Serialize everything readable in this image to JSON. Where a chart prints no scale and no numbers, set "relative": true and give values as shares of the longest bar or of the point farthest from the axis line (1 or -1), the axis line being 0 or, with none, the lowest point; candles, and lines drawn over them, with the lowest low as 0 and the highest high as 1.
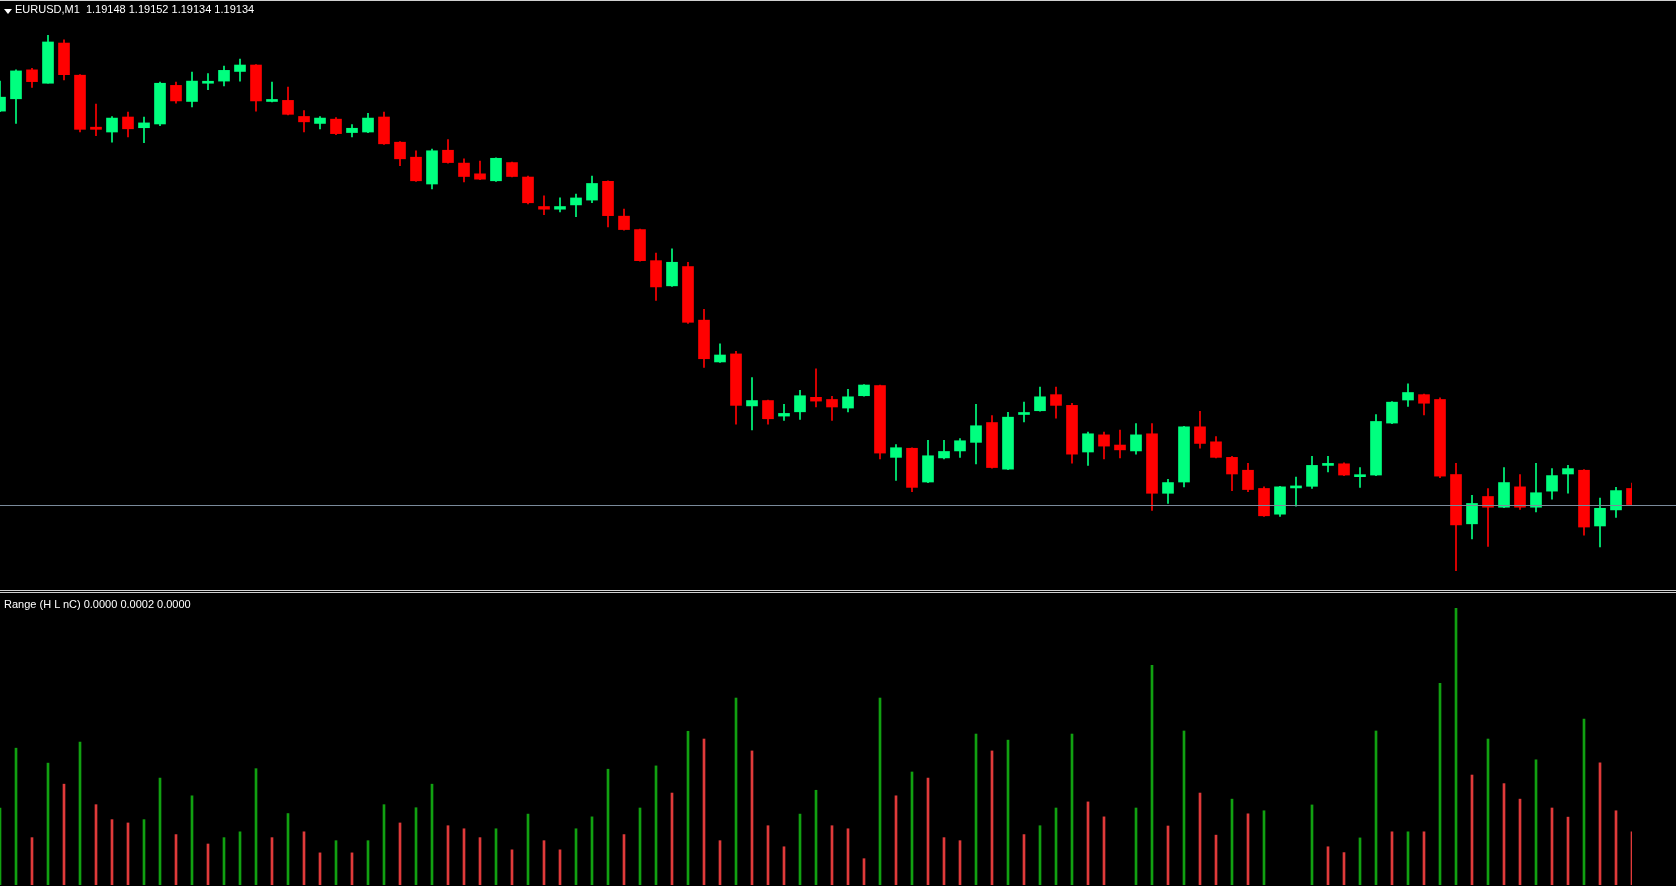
{
  "chart_data": [
    {
      "type": "candlestick",
      "title": "EURUSD,M1  1.19148 1.19152 1.19134 1.19134",
      "relative": true,
      "categories": [
        null,
        null,
        null,
        null,
        null,
        null,
        null,
        null,
        null,
        null,
        null,
        null,
        null,
        null,
        null,
        null,
        null,
        null,
        null,
        null,
        null,
        null,
        null,
        null,
        null,
        null,
        null,
        null,
        null,
        null,
        null,
        null,
        null,
        null,
        null,
        null,
        null,
        null,
        null,
        null,
        null,
        null,
        null,
        null,
        null,
        null,
        null,
        null,
        null,
        null,
        null,
        null,
        null,
        null,
        null,
        null,
        null,
        null,
        null,
        null,
        null,
        null,
        null,
        null,
        null,
        null,
        null,
        null,
        null,
        null,
        null,
        null,
        null,
        null,
        null,
        null,
        null,
        null,
        null,
        null,
        null,
        null,
        null,
        null,
        null,
        null,
        null,
        null,
        null,
        null,
        null,
        null,
        null,
        null,
        null,
        null,
        null,
        null,
        null,
        null,
        null,
        null,
        null
      ],
      "ohlc": [
        [
          0.858,
          0.914,
          0.857,
          0.884
        ],
        [
          0.881,
          0.935,
          0.835,
          0.933
        ],
        [
          0.935,
          0.938,
          0.902,
          0.913
        ],
        [
          0.91,
          1,
          0.91,
          0.987
        ],
        [
          0.985,
          0.991,
          0.916,
          0.926
        ],
        [
          0.925,
          0.926,
          0.819,
          0.824
        ],
        [
          0.828,
          0.871,
          0.812,
          0.824
        ],
        [
          0.819,
          0.848,
          0.8,
          0.845
        ],
        [
          0.847,
          0.856,
          0.81,
          0.825
        ],
        [
          0.827,
          0.847,
          0.799,
          0.836
        ],
        [
          0.834,
          0.912,
          0.831,
          0.91
        ],
        [
          0.906,
          0.912,
          0.873,
          0.877
        ],
        [
          0.876,
          0.931,
          0.866,
          0.914
        ],
        [
          0.91,
          0.928,
          0.898,
          0.912
        ],
        [
          0.914,
          0.942,
          0.905,
          0.934
        ],
        [
          0.932,
          0.955,
          0.914,
          0.944
        ],
        [
          0.944,
          0.945,
          0.858,
          0.877
        ],
        [
          0.876,
          0.912,
          0.875,
          0.878
        ],
        [
          0.878,
          0.903,
          0.851,
          0.852
        ],
        [
          0.848,
          0.859,
          0.819,
          0.838
        ],
        [
          0.835,
          0.848,
          0.825,
          0.845
        ],
        [
          0.843,
          0.846,
          0.814,
          0.816
        ],
        [
          0.818,
          0.833,
          0.81,
          0.826
        ],
        [
          0.819,
          0.854,
          0.818,
          0.845
        ],
        [
          0.847,
          0.856,
          0.796,
          0.797
        ],
        [
          0.8,
          0.801,
          0.756,
          0.769
        ],
        [
          0.772,
          0.784,
          0.727,
          0.728
        ],
        [
          0.722,
          0.787,
          0.713,
          0.784
        ],
        [
          0.785,
          0.805,
          0.761,
          0.762
        ],
        [
          0.761,
          0.769,
          0.726,
          0.736
        ],
        [
          0.741,
          0.765,
          0.73,
          0.731
        ],
        [
          0.728,
          0.771,
          0.727,
          0.77
        ],
        [
          0.762,
          0.763,
          0.735,
          0.736
        ],
        [
          0.735,
          0.737,
          0.685,
          0.687
        ],
        [
          0.68,
          0.7,
          0.665,
          0.675
        ],
        [
          0.675,
          0.696,
          0.67,
          0.68
        ],
        [
          0.683,
          0.703,
          0.661,
          0.696
        ],
        [
          0.692,
          0.737,
          0.687,
          0.723
        ],
        [
          0.727,
          0.728,
          0.642,
          0.663
        ],
        [
          0.662,
          0.675,
          0.636,
          0.637
        ],
        [
          0.637,
          0.638,
          0.578,
          0.579
        ],
        [
          0.579,
          0.593,
          0.505,
          0.53
        ],
        [
          0.532,
          0.601,
          0.531,
          0.576
        ],
        [
          0.568,
          0.576,
          0.462,
          0.464
        ],
        [
          0.468,
          0.488,
          0.38,
          0.396
        ],
        [
          0.39,
          0.424,
          0.389,
          0.403
        ],
        [
          0.405,
          0.41,
          0.274,
          0.309
        ],
        [
          0.308,
          0.361,
          0.263,
          0.318
        ],
        [
          0.318,
          0.319,
          0.274,
          0.284
        ],
        [
          0.289,
          0.311,
          0.281,
          0.294
        ],
        [
          0.297,
          0.337,
          0.283,
          0.327
        ],
        [
          0.324,
          0.377,
          0.306,
          0.317
        ],
        [
          0.32,
          0.326,
          0.281,
          0.306
        ],
        [
          0.304,
          0.339,
          0.297,
          0.325
        ],
        [
          0.327,
          0.348,
          0.326,
          0.347
        ],
        [
          0.346,
          0.347,
          0.209,
          0.22
        ],
        [
          0.212,
          0.236,
          0.169,
          0.23
        ],
        [
          0.229,
          0.23,
          0.148,
          0.156
        ],
        [
          0.166,
          0.244,
          0.165,
          0.215
        ],
        [
          0.211,
          0.244,
          0.209,
          0.223
        ],
        [
          0.224,
          0.247,
          0.212,
          0.243
        ],
        [
          0.24,
          0.311,
          0.2,
          0.271
        ],
        [
          0.277,
          0.29,
          0.192,
          0.193
        ],
        [
          0.19,
          0.296,
          0.189,
          0.287
        ],
        [
          0.292,
          0.315,
          0.278,
          0.295
        ],
        [
          0.299,
          0.343,
          0.298,
          0.325
        ],
        [
          0.329,
          0.343,
          0.285,
          0.309
        ],
        [
          0.309,
          0.313,
          0.201,
          0.218
        ],
        [
          0.222,
          0.259,
          0.197,
          0.256
        ],
        [
          0.254,
          0.259,
          0.209,
          0.233
        ],
        [
          0.235,
          0.263,
          0.211,
          0.226
        ],
        [
          0.224,
          0.275,
          0.218,
          0.254
        ],
        [
          0.256,
          0.275,
          0.113,
          0.145
        ],
        [
          0.145,
          0.171,
          0.126,
          0.165
        ],
        [
          0.166,
          0.27,
          0.157,
          0.269
        ],
        [
          0.269,
          0.298,
          0.229,
          0.238
        ],
        [
          0.241,
          0.251,
          0.211,
          0.212
        ],
        [
          0.212,
          0.214,
          0.15,
          0.181
        ],
        [
          0.188,
          0.201,
          0.148,
          0.152
        ],
        [
          0.154,
          0.157,
          0.102,
          0.103
        ],
        [
          0.106,
          0.158,
          0.102,
          0.157
        ],
        [
          0.155,
          0.175,
          0.121,
          0.157
        ],
        [
          0.158,
          0.214,
          0.154,
          0.197
        ],
        [
          0.197,
          0.214,
          0.185,
          0.2
        ],
        [
          0.2,
          0.202,
          0.178,
          0.179
        ],
        [
          0.176,
          0.193,
          0.156,
          0.178
        ],
        [
          0.179,
          0.292,
          0.178,
          0.279
        ],
        [
          0.276,
          0.316,
          0.275,
          0.315
        ],
        [
          0.319,
          0.349,
          0.307,
          0.333
        ],
        [
          0.329,
          0.33,
          0.291,
          0.313
        ],
        [
          0.32,
          0.323,
          0.174,
          0.177
        ],
        [
          0.18,
          0.201,
          0,
          0.086
        ],
        [
          0.088,
          0.141,
          0.06,
          0.126
        ],
        [
          0.139,
          0.154,
          0.046,
          0.119
        ],
        [
          0.119,
          0.193,
          0.118,
          0.165
        ],
        [
          0.157,
          0.18,
          0.115,
          0.119
        ],
        [
          0.119,
          0.201,
          0.11,
          0.146
        ],
        [
          0.149,
          0.191,
          0.134,
          0.178
        ],
        [
          0.181,
          0.197,
          0.145,
          0.191
        ],
        [
          0.188,
          0.189,
          0.067,
          0.082
        ],
        [
          0.084,
          0.136,
          0.045,
          0.117
        ],
        [
          0.114,
          0.156,
          0.1,
          0.15
        ],
        [
          0.154,
          0.164,
          0.123,
          0.124
        ]
      ],
      "colors": [
        "#00ff7f",
        "#00ff7f",
        "#ff0000",
        "#00ff7f",
        "#ff0000",
        "#ff0000",
        "#ff0000",
        "#00ff7f",
        "#ff0000",
        "#00ff7f",
        "#00ff7f",
        "#ff0000",
        "#00ff7f",
        "#00ff7f",
        "#00ff7f",
        "#00ff7f",
        "#ff0000",
        "#00ff7f",
        "#ff0000",
        "#ff0000",
        "#00ff7f",
        "#ff0000",
        "#00ff7f",
        "#00ff7f",
        "#ff0000",
        "#ff0000",
        "#ff0000",
        "#00ff7f",
        "#ff0000",
        "#ff0000",
        "#ff0000",
        "#00ff7f",
        "#ff0000",
        "#ff0000",
        "#ff0000",
        "#00ff7f",
        "#00ff7f",
        "#00ff7f",
        "#ff0000",
        "#ff0000",
        "#ff0000",
        "#ff0000",
        "#00ff7f",
        "#ff0000",
        "#ff0000",
        "#00ff7f",
        "#ff0000",
        "#00ff7f",
        "#ff0000",
        "#00ff7f",
        "#00ff7f",
        "#ff0000",
        "#ff0000",
        "#00ff7f",
        "#00ff7f",
        "#ff0000",
        "#00ff7f",
        "#ff0000",
        "#00ff7f",
        "#00ff7f",
        "#00ff7f",
        "#00ff7f",
        "#ff0000",
        "#00ff7f",
        "#00ff7f",
        "#00ff7f",
        "#ff0000",
        "#ff0000",
        "#00ff7f",
        "#ff0000",
        "#ff0000",
        "#00ff7f",
        "#ff0000",
        "#00ff7f",
        "#00ff7f",
        "#ff0000",
        "#ff0000",
        "#ff0000",
        "#ff0000",
        "#ff0000",
        "#00ff7f",
        "#00ff7f",
        "#00ff7f",
        "#00ff7f",
        "#ff0000",
        "#00ff7f",
        "#00ff7f",
        "#00ff7f",
        "#00ff7f",
        "#ff0000",
        "#ff0000",
        "#ff0000",
        "#00ff7f",
        "#ff0000",
        "#00ff7f",
        "#ff0000",
        "#00ff7f",
        "#00ff7f",
        "#00ff7f",
        "#ff0000",
        "#00ff7f",
        "#00ff7f",
        "#ff0000"
      ],
      "ref_lines": [
        {
          "axis": "y",
          "value": 0.124,
          "color": "#7a8a9a"
        }
      ]
    },
    {
      "type": "bar",
      "title": "Range (H L nC) 0.0000 0.0002 0.0000",
      "relative": true,
      "categories": [
        null,
        null,
        null,
        null,
        null,
        null,
        null,
        null,
        null,
        null,
        null,
        null,
        null,
        null,
        null,
        null,
        null,
        null,
        null,
        null,
        null,
        null,
        null,
        null,
        null,
        null,
        null,
        null,
        null,
        null,
        null,
        null,
        null,
        null,
        null,
        null,
        null,
        null,
        null,
        null,
        null,
        null,
        null,
        null,
        null,
        null,
        null,
        null,
        null,
        null,
        null,
        null,
        null,
        null,
        null,
        null,
        null,
        null,
        null,
        null,
        null,
        null,
        null,
        null,
        null,
        null,
        null,
        null,
        null,
        null,
        null,
        null,
        null,
        null,
        null,
        null,
        null,
        null,
        null,
        null,
        null,
        null,
        null,
        null,
        null,
        null,
        null,
        null,
        null,
        null,
        null,
        null,
        null,
        null,
        null,
        null,
        null,
        null,
        null,
        null,
        null,
        null,
        null
      ],
      "values": [
        0.278,
        0.494,
        0.171,
        0.44,
        0.364,
        0.516,
        0.29,
        0.236,
        0.224,
        0.236,
        0.386,
        0.182,
        0.322,
        0.148,
        0.171,
        0.192,
        0.42,
        0.171,
        0.258,
        0.192,
        0.116,
        0.16,
        0.116,
        0.16,
        0.29,
        0.224,
        0.279,
        0.364,
        0.214,
        0.203,
        0.171,
        0.203,
        0.127,
        0.256,
        0.16,
        0.127,
        0.203,
        0.246,
        0.418,
        0.182,
        0.278,
        0.43,
        0.332,
        0.555,
        0.527,
        0.16,
        0.675,
        0.484,
        0.214,
        0.138,
        0.256,
        0.342,
        0.214,
        0.203,
        0.095,
        0.675,
        0.322,
        0.408,
        0.386,
        0.171,
        0.16,
        0.545,
        0.484,
        0.523,
        0.182,
        0.214,
        0.278,
        0.545,
        0.3,
        0.246,
        null,
        0.278,
        0.793,
        0.213,
        0.556,
        0.332,
        0.18,
        0.31,
        0.257,
        0.268,
        null,
        null,
        0.289,
        0.138,
        0.117,
        0.17,
        0.556,
        0.192,
        0.192,
        0.192,
        0.728,
        1,
        0.397,
        0.527,
        0.366,
        0.31,
        0.452,
        0.278,
        0.245,
        0.599,
        0.441,
        0.268,
        0.192
      ],
      "colors": [
        "#11a011",
        "#11a011",
        "#e03a3a",
        "#11a011",
        "#e03a3a",
        "#11a011",
        "#e03a3a",
        "#e03a3a",
        "#e03a3a",
        "#11a011",
        "#11a011",
        "#e03a3a",
        "#11a011",
        "#e03a3a",
        "#11a011",
        "#11a011",
        "#11a011",
        "#e03a3a",
        "#11a011",
        "#e03a3a",
        "#e03a3a",
        "#11a011",
        "#e03a3a",
        "#11a011",
        "#11a011",
        "#e03a3a",
        "#11a011",
        "#11a011",
        "#e03a3a",
        "#e03a3a",
        "#e03a3a",
        "#11a011",
        "#e03a3a",
        "#11a011",
        "#e03a3a",
        "#e03a3a",
        "#11a011",
        "#11a011",
        "#11a011",
        "#e03a3a",
        "#11a011",
        "#11a011",
        "#e03a3a",
        "#11a011",
        "#e03a3a",
        "#e03a3a",
        "#11a011",
        "#e03a3a",
        "#e03a3a",
        "#e03a3a",
        "#11a011",
        "#11a011",
        "#e03a3a",
        "#e03a3a",
        "#e03a3a",
        "#11a011",
        "#e03a3a",
        "#11a011",
        "#e03a3a",
        "#e03a3a",
        "#e03a3a",
        "#11a011",
        "#e03a3a",
        "#11a011",
        "#e03a3a",
        "#11a011",
        "#11a011",
        "#11a011",
        "#e03a3a",
        "#e03a3a",
        "#e03a3a",
        "#11a011",
        "#11a011",
        "#e03a3a",
        "#11a011",
        "#e03a3a",
        "#e03a3a",
        "#11a011",
        "#e03a3a",
        "#11a011",
        "#11a011",
        "#11a011",
        "#11a011",
        "#e03a3a",
        "#e03a3a",
        "#11a011",
        "#11a011",
        "#e03a3a",
        "#11a011",
        "#e03a3a",
        "#11a011",
        "#11a011",
        "#e03a3a",
        "#11a011",
        "#e03a3a",
        "#e03a3a",
        "#11a011",
        "#e03a3a",
        "#e03a3a",
        "#11a011",
        "#e03a3a",
        "#e03a3a",
        "#e03a3a"
      ]
    }
  ]
}
